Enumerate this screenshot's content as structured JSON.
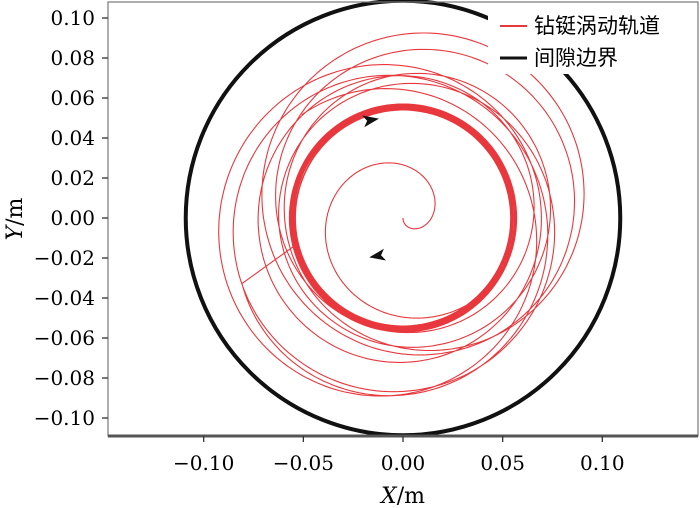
{
  "chart_data": {
    "type": "line",
    "title": "",
    "xlabel": {
      "var": "X",
      "unit": "/m"
    },
    "ylabel": {
      "var": "Y",
      "unit": "/m"
    },
    "xlim": [
      -0.148,
      0.148
    ],
    "ylim": [
      -0.109,
      0.108
    ],
    "xticks": [
      -0.1,
      -0.05,
      0.0,
      0.05,
      0.1
    ],
    "xtick_labels": [
      "−0.10",
      "−0.05",
      "0.00",
      "0.05",
      "0.10"
    ],
    "yticks": [
      0.1,
      0.08,
      0.06,
      0.04,
      0.02,
      0.0,
      -0.02,
      -0.04,
      -0.06,
      -0.08,
      -0.1
    ],
    "ytick_labels": [
      "0.10",
      "0.08",
      "0.06",
      "0.04",
      "0.02",
      "0.00",
      "−0.02",
      "−0.04",
      "−0.06",
      "−0.08",
      "−0.10"
    ],
    "grid": false,
    "legend_position": "top-right",
    "series": [
      {
        "name": "钻铤涡动轨道",
        "color": "#e8383d",
        "shape": "spiral",
        "start_center": [
          0.0,
          0.0
        ],
        "start_radius": 0.0,
        "dense_band_radius": [
          0.054,
          0.057
        ],
        "outer_loop_radius": [
          0.065,
          0.082
        ],
        "outer_loop_center_offset": 0.012
      },
      {
        "name": "间隙边界",
        "color": "#111111",
        "shape": "circle",
        "center": [
          0.0,
          0.0
        ],
        "radius": 0.109
      }
    ]
  }
}
